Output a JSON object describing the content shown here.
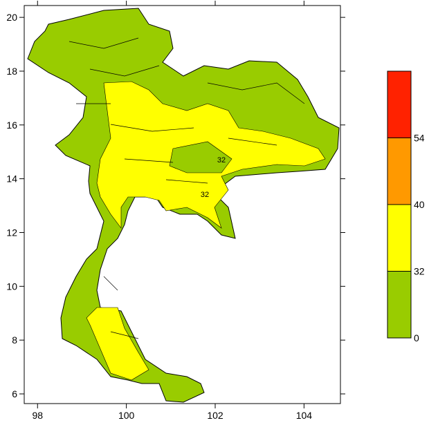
{
  "map": {
    "xlim": [
      97.7,
      104.82
    ],
    "xticks": [
      98,
      100,
      102,
      104
    ],
    "ylim": [
      5.64,
      20.44
    ],
    "yticks": [
      6,
      8,
      10,
      12,
      14,
      16,
      18,
      20
    ],
    "contour_labels": [
      "32",
      "32"
    ],
    "colorbar": {
      "levels": [
        0,
        32,
        40,
        54
      ],
      "colors": [
        "#99cc00",
        "#ffff00",
        "#ff9900",
        "#ff2200"
      ]
    }
  }
}
